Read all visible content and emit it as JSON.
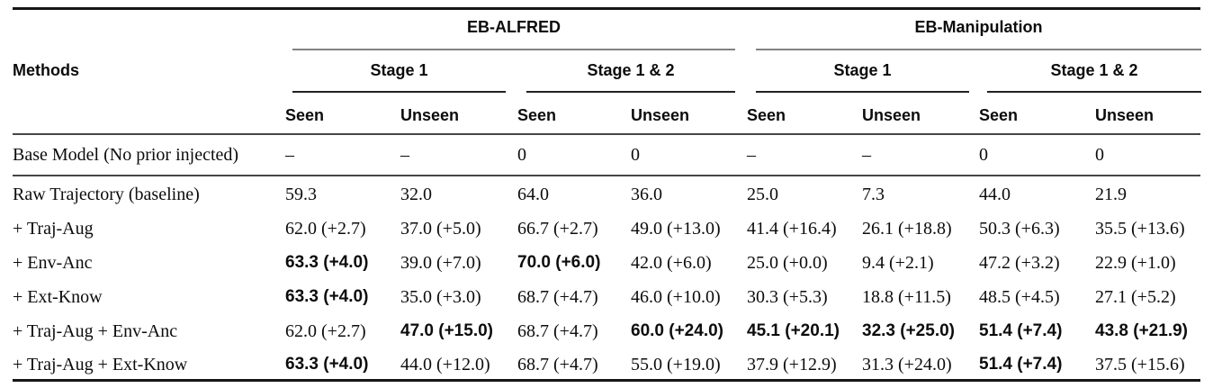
{
  "table": {
    "methods_header": "Methods",
    "groups": [
      {
        "label": "EB-ALFRED",
        "stages": [
          {
            "label": "Stage 1"
          },
          {
            "label": "Stage 1 & 2"
          }
        ]
      },
      {
        "label": "EB-Manipulation",
        "stages": [
          {
            "label": "Stage 1"
          },
          {
            "label": "Stage 1 & 2"
          }
        ]
      }
    ],
    "col_headers": [
      "Seen",
      "Unseen",
      "Seen",
      "Unseen",
      "Seen",
      "Unseen",
      "Seen",
      "Unseen"
    ],
    "rows": [
      {
        "label": "Base Model (No prior injected)",
        "cells": [
          {
            "text": "–"
          },
          {
            "text": "–"
          },
          {
            "text": "0"
          },
          {
            "text": "0"
          },
          {
            "text": "–"
          },
          {
            "text": "–"
          },
          {
            "text": "0"
          },
          {
            "text": "0"
          }
        ]
      },
      {
        "label": "Raw Trajectory (baseline)",
        "cells": [
          {
            "text": "59.3"
          },
          {
            "text": "32.0"
          },
          {
            "text": "64.0"
          },
          {
            "text": "36.0"
          },
          {
            "text": "25.0"
          },
          {
            "text": "7.3"
          },
          {
            "text": "44.0"
          },
          {
            "text": "21.9"
          }
        ]
      },
      {
        "label": "+ Traj-Aug",
        "cells": [
          {
            "text": "62.0 (+2.7)"
          },
          {
            "text": "37.0 (+5.0)"
          },
          {
            "text": "66.7 (+2.7)"
          },
          {
            "text": "49.0 (+13.0)"
          },
          {
            "text": "41.4 (+16.4)"
          },
          {
            "text": "26.1 (+18.8)"
          },
          {
            "text": "50.3 (+6.3)"
          },
          {
            "text": "35.5 (+13.6)"
          }
        ]
      },
      {
        "label": "+ Env-Anc",
        "cells": [
          {
            "text": "63.3 (+4.0)",
            "bold": true
          },
          {
            "text": "39.0 (+7.0)"
          },
          {
            "text": "70.0 (+6.0)",
            "bold": true
          },
          {
            "text": "42.0 (+6.0)"
          },
          {
            "text": "25.0 (+0.0)"
          },
          {
            "text": "9.4 (+2.1)"
          },
          {
            "text": "47.2 (+3.2)"
          },
          {
            "text": "22.9 (+1.0)"
          }
        ]
      },
      {
        "label": "+ Ext-Know",
        "cells": [
          {
            "text": "63.3 (+4.0)",
            "bold": true
          },
          {
            "text": "35.0 (+3.0)"
          },
          {
            "text": "68.7 (+4.7)"
          },
          {
            "text": "46.0 (+10.0)"
          },
          {
            "text": "30.3 (+5.3)"
          },
          {
            "text": "18.8 (+11.5)"
          },
          {
            "text": "48.5 (+4.5)"
          },
          {
            "text": "27.1 (+5.2)"
          }
        ]
      },
      {
        "label": "+ Traj-Aug + Env-Anc",
        "cells": [
          {
            "text": "62.0 (+2.7)"
          },
          {
            "text": "47.0 (+15.0)",
            "bold": true
          },
          {
            "text": "68.7 (+4.7)"
          },
          {
            "text": "60.0 (+24.0)",
            "bold": true
          },
          {
            "text": "45.1 (+20.1)",
            "bold": true
          },
          {
            "text": "32.3 (+25.0)",
            "bold": true
          },
          {
            "text": "51.4 (+7.4)",
            "bold": true
          },
          {
            "text": "43.8 (+21.9)",
            "bold": true
          }
        ]
      },
      {
        "label": "+ Traj-Aug + Ext-Know",
        "cells": [
          {
            "text": "63.3 (+4.0)",
            "bold": true
          },
          {
            "text": "44.0 (+12.0)"
          },
          {
            "text": "68.7 (+4.7)"
          },
          {
            "text": "55.0 (+19.0)"
          },
          {
            "text": "37.9 (+12.9)"
          },
          {
            "text": "31.3 (+24.0)"
          },
          {
            "text": "51.4 (+7.4)",
            "bold": true
          },
          {
            "text": "37.5 (+15.6)"
          }
        ]
      }
    ]
  }
}
